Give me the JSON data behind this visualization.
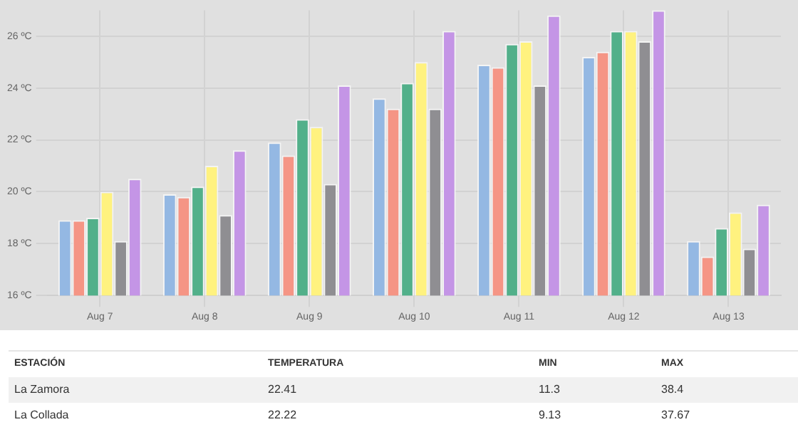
{
  "chart_data": {
    "type": "bar",
    "categories": [
      "Aug 7",
      "Aug 8",
      "Aug 9",
      "Aug 10",
      "Aug 11",
      "Aug 12",
      "Aug 13"
    ],
    "series": [
      {
        "color": "#94b8e3",
        "values": [
          18.9,
          19.9,
          21.9,
          23.6,
          24.9,
          25.2,
          18.1
        ]
      },
      {
        "color": "#f59585",
        "values": [
          18.9,
          19.8,
          21.4,
          23.2,
          24.8,
          25.4,
          17.5
        ]
      },
      {
        "color": "#52b08a",
        "values": [
          19.0,
          20.2,
          22.8,
          24.2,
          25.7,
          26.2,
          18.6
        ]
      },
      {
        "color": "#fff27f",
        "values": [
          20.0,
          21.0,
          22.5,
          25.0,
          25.8,
          26.2,
          19.2
        ]
      },
      {
        "color": "#8f8e92",
        "values": [
          18.1,
          19.1,
          20.3,
          23.2,
          24.1,
          25.8,
          17.8
        ]
      },
      {
        "color": "#c495e6",
        "values": [
          20.5,
          21.6,
          24.1,
          26.2,
          26.8,
          27.0,
          19.5
        ]
      }
    ],
    "ylim": [
      16,
      27
    ],
    "yticks": [
      {
        "value": 16,
        "label": "16 ºC"
      },
      {
        "value": 18,
        "label": "18 ºC"
      },
      {
        "value": 20,
        "label": "20 ºC"
      },
      {
        "value": 22,
        "label": "22 ºC"
      },
      {
        "value": 24,
        "label": "24 ºC"
      },
      {
        "value": 26,
        "label": "26 ºC"
      }
    ],
    "grid": true,
    "annotations": [
      "ESTACIÓN",
      "TEMPERATURA",
      "MIN",
      "MAX",
      "La Zamora",
      "22.41",
      "11.3",
      "38.4",
      "La Collada",
      "22.22",
      "9.13",
      "37.67"
    ]
  }
}
